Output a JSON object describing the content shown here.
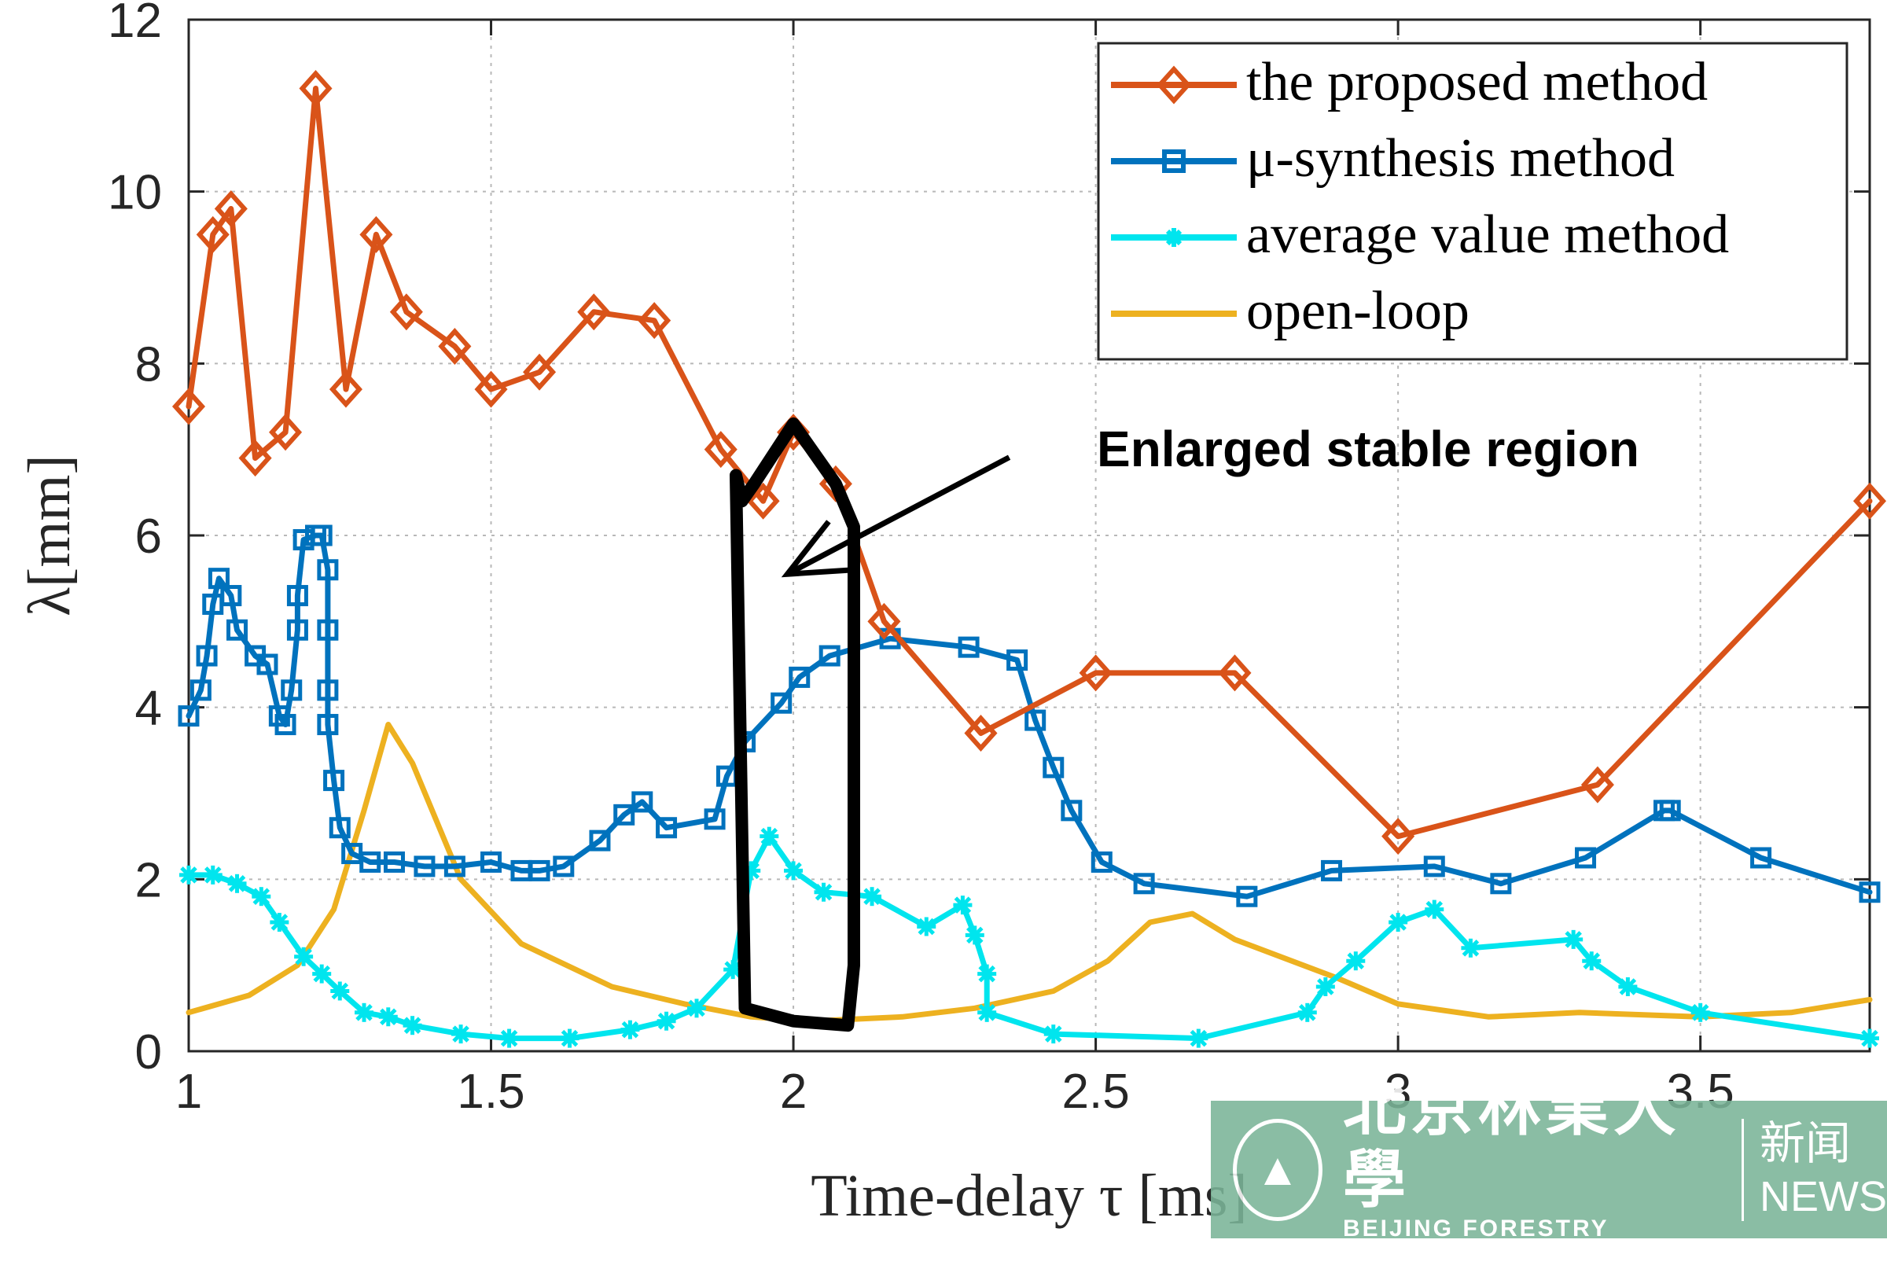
{
  "chart_data": {
    "type": "line",
    "title": "",
    "xlabel": "Time-delay τ [ms]",
    "ylabel": "λ[mm]",
    "xlim": [
      1,
      3.78
    ],
    "ylim": [
      0,
      12
    ],
    "xticks": [
      1,
      1.5,
      2,
      2.5,
      3,
      3.5
    ],
    "xtick_labels": [
      "1",
      "1.5",
      "2",
      "2.5",
      "3",
      "3.5"
    ],
    "yticks": [
      0,
      2,
      4,
      6,
      8,
      10,
      12
    ],
    "ytick_labels": [
      "0",
      "2",
      "4",
      "6",
      "8",
      "10",
      "12"
    ],
    "grid": true,
    "legend_position": "top-right",
    "series": [
      {
        "name": "the proposed method",
        "color": "#d95319",
        "marker": "diamond",
        "x": [
          1.0,
          1.04,
          1.07,
          1.11,
          1.16,
          1.21,
          1.26,
          1.31,
          1.36,
          1.44,
          1.5,
          1.58,
          1.67,
          1.77,
          1.88,
          1.95,
          2.0,
          2.07,
          2.15,
          2.31,
          2.5,
          2.73,
          3.0,
          3.33,
          3.78
        ],
        "y": [
          7.5,
          9.5,
          9.8,
          6.9,
          7.2,
          11.2,
          7.7,
          9.5,
          8.6,
          8.2,
          7.7,
          7.9,
          8.6,
          8.5,
          7.0,
          6.4,
          7.2,
          6.6,
          5.0,
          3.7,
          4.4,
          4.4,
          2.5,
          3.1,
          6.4
        ]
      },
      {
        "name": "μ-synthesis method",
        "color": "#0072bd",
        "marker": "square",
        "x": [
          1.0,
          1.02,
          1.03,
          1.04,
          1.05,
          1.07,
          1.08,
          1.11,
          1.13,
          1.15,
          1.16,
          1.17,
          1.18,
          1.18,
          1.19,
          1.21,
          1.22,
          1.23,
          1.23,
          1.23,
          1.23,
          1.24,
          1.25,
          1.27,
          1.3,
          1.34,
          1.39,
          1.44,
          1.5,
          1.55,
          1.58,
          1.62,
          1.68,
          1.72,
          1.75,
          1.79,
          1.87,
          1.89,
          1.92,
          1.98,
          2.01,
          2.06,
          2.16,
          2.29,
          2.37,
          2.4,
          2.43,
          2.46,
          2.51,
          2.58,
          2.75,
          2.89,
          3.06,
          3.17,
          3.31,
          3.44,
          3.45,
          3.6,
          3.78
        ],
        "y": [
          3.9,
          4.2,
          4.6,
          5.2,
          5.5,
          5.3,
          4.9,
          4.6,
          4.5,
          3.9,
          3.8,
          4.2,
          4.9,
          5.3,
          5.95,
          6.0,
          6.0,
          5.6,
          4.9,
          4.2,
          3.8,
          3.15,
          2.6,
          2.3,
          2.2,
          2.2,
          2.15,
          2.15,
          2.2,
          2.1,
          2.1,
          2.15,
          2.45,
          2.75,
          2.9,
          2.6,
          2.7,
          3.2,
          3.6,
          4.05,
          4.35,
          4.6,
          4.8,
          4.7,
          4.55,
          3.85,
          3.3,
          2.8,
          2.2,
          1.95,
          1.8,
          2.1,
          2.15,
          1.95,
          2.25,
          2.8,
          2.8,
          2.25,
          1.85
        ]
      },
      {
        "name": "average value method",
        "color": "#00e5ee",
        "marker": "asterisk",
        "x": [
          1.0,
          1.04,
          1.08,
          1.12,
          1.15,
          1.19,
          1.22,
          1.25,
          1.29,
          1.33,
          1.37,
          1.45,
          1.53,
          1.63,
          1.73,
          1.79,
          1.84,
          1.9,
          1.93,
          1.96,
          2.0,
          2.05,
          2.13,
          2.22,
          2.28,
          2.3,
          2.32,
          2.32,
          2.43,
          2.67,
          2.85,
          2.88,
          2.93,
          3.0,
          3.06,
          3.12,
          3.29,
          3.32,
          3.38,
          3.5,
          3.78
        ],
        "y": [
          2.05,
          2.05,
          1.95,
          1.8,
          1.5,
          1.1,
          0.9,
          0.7,
          0.45,
          0.4,
          0.3,
          0.2,
          0.15,
          0.15,
          0.25,
          0.35,
          0.5,
          0.95,
          2.1,
          2.5,
          2.1,
          1.85,
          1.8,
          1.45,
          1.7,
          1.35,
          0.9,
          0.45,
          0.2,
          0.15,
          0.45,
          0.75,
          1.05,
          1.5,
          1.65,
          1.2,
          1.3,
          1.05,
          0.75,
          0.45,
          0.15
        ]
      },
      {
        "name": "open-loop",
        "color": "#edb120",
        "marker": "none",
        "x": [
          1.0,
          1.1,
          1.18,
          1.24,
          1.29,
          1.33,
          1.37,
          1.45,
          1.55,
          1.7,
          1.82,
          1.93,
          2.03,
          2.18,
          2.3,
          2.43,
          2.52,
          2.59,
          2.66,
          2.73,
          2.9,
          3.0,
          3.15,
          3.3,
          3.5,
          3.65,
          3.78
        ],
        "y": [
          0.45,
          0.65,
          1.0,
          1.65,
          2.8,
          3.8,
          3.35,
          2.0,
          1.25,
          0.75,
          0.55,
          0.4,
          0.35,
          0.4,
          0.5,
          0.7,
          1.05,
          1.5,
          1.6,
          1.3,
          0.85,
          0.55,
          0.4,
          0.45,
          0.4,
          0.45,
          0.6
        ]
      }
    ],
    "annotation": {
      "text": "Enlarged stable region",
      "region_outline": {
        "x": [
          1.905,
          1.915,
          1.935,
          2.0,
          2.07,
          2.1,
          2.1,
          2.1,
          2.09,
          2.0,
          1.92,
          1.905
        ],
        "y": [
          6.7,
          6.4,
          6.6,
          7.3,
          6.6,
          6.1,
          4.0,
          1.0,
          0.3,
          0.35,
          0.5,
          6.7
        ]
      },
      "pointer": {
        "from": [
          2.5,
          7.0
        ],
        "to": [
          1.99,
          5.55
        ]
      }
    }
  },
  "watermark": {
    "name_cn": "北京林業大學",
    "name_en": "BEIJING FORESTRY UNIVERSITY",
    "news_cn": "新闻",
    "news_en": "NEWS"
  }
}
